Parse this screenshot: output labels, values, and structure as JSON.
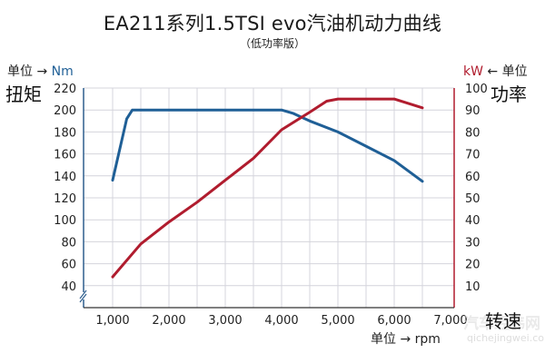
{
  "chart_data": {
    "type": "line",
    "title": "EA211系列1.5TSI evo汽油机动力曲线",
    "subtitle": "（低功率版）",
    "xlabel": "转速",
    "x_unit_label": "单位 → rpm",
    "x_ticks": [
      "1,000",
      "2,000",
      "3,000",
      "4,000",
      "5,000",
      "6,000",
      "7,000"
    ],
    "xlim": [
      500,
      7000
    ],
    "y_left": {
      "label": "扭矩",
      "unit_prefix": "单位 →",
      "unit": "Nm",
      "ticks": [
        "220",
        "200",
        "180",
        "160",
        "140",
        "120",
        "100",
        "80",
        "60",
        "40"
      ],
      "ylim": [
        20,
        220
      ],
      "axis_break": true
    },
    "y_right": {
      "label": "功率",
      "unit": "kW",
      "unit_suffix": "← 单位",
      "ticks": [
        "100",
        "90",
        "80",
        "70",
        "60",
        "50",
        "40",
        "30",
        "20",
        "10"
      ],
      "ylim": [
        0,
        100
      ]
    },
    "grid": true,
    "series": [
      {
        "name": "扭矩 (Nm)",
        "axis": "left",
        "color": "#1f5f96",
        "x": [
          1000,
          1250,
          1350,
          1500,
          2000,
          3000,
          4000,
          4200,
          4500,
          5000,
          5500,
          6000,
          6500
        ],
        "values": [
          136,
          192,
          200,
          200,
          200,
          200,
          200,
          197,
          190,
          180,
          167,
          154,
          135
        ]
      },
      {
        "name": "功率 (kW)",
        "axis": "right",
        "color": "#b01c2e",
        "x": [
          1000,
          1500,
          2000,
          2500,
          3000,
          3500,
          4000,
          4500,
          4800,
          5000,
          5500,
          6000,
          6500
        ],
        "values": [
          14,
          29,
          39,
          48,
          58,
          68,
          81,
          89,
          94,
          95,
          95,
          95,
          91
        ]
      }
    ]
  },
  "watermark": {
    "main": "汽车经纬网",
    "url": "qichejingwei.com"
  }
}
